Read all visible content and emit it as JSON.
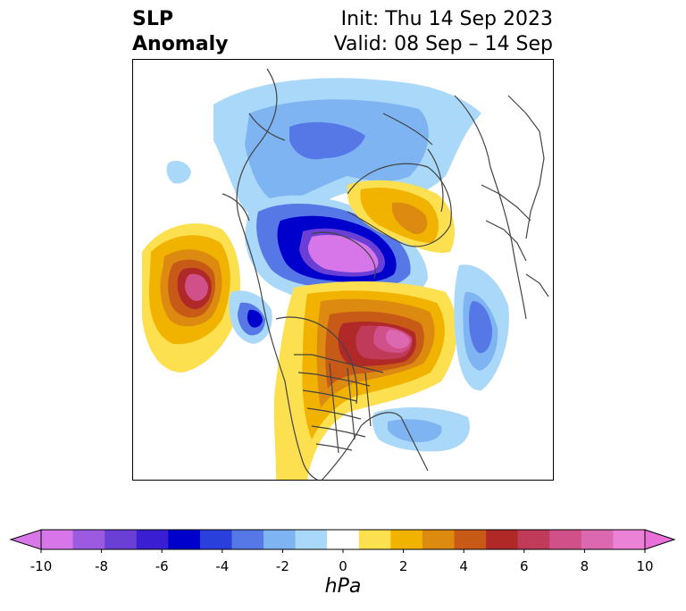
{
  "title": {
    "line1": "SLP",
    "line2": "Anomaly"
  },
  "subtitle": {
    "init": "Init: Thu 14 Sep 2023",
    "valid": "Valid: 08 Sep – 14 Sep"
  },
  "colorbar": {
    "unit_label": "hPa",
    "ticks": [
      "-10",
      "-8",
      "-6",
      "-4",
      "-2",
      "0",
      "2",
      "4",
      "6",
      "8",
      "10"
    ],
    "colors": [
      "#d676e8",
      "#9c5ae0",
      "#6a3fd6",
      "#3a1fd2",
      "#0000cc",
      "#2a3fdc",
      "#5677e6",
      "#7eb4f2",
      "#aad8f8",
      "#ffffff",
      "#fce050",
      "#f2b300",
      "#dc8a10",
      "#c85a18",
      "#b02828",
      "#c03a5a",
      "#d0508a",
      "#dc68b0",
      "#ec82d8"
    ],
    "under_color": "#d878e8",
    "over_color": "#e870d8"
  },
  "map": {
    "projection": "north-polar-stereographic",
    "features": [
      "positive-anomaly-north-pacific",
      "negative-anomaly-arctic",
      "positive-anomaly-canada",
      "positive-anomaly-scandinavia",
      "negative-anomaly-northwest-atlantic-coast",
      "negative-anomaly-east-asia-coast"
    ]
  }
}
